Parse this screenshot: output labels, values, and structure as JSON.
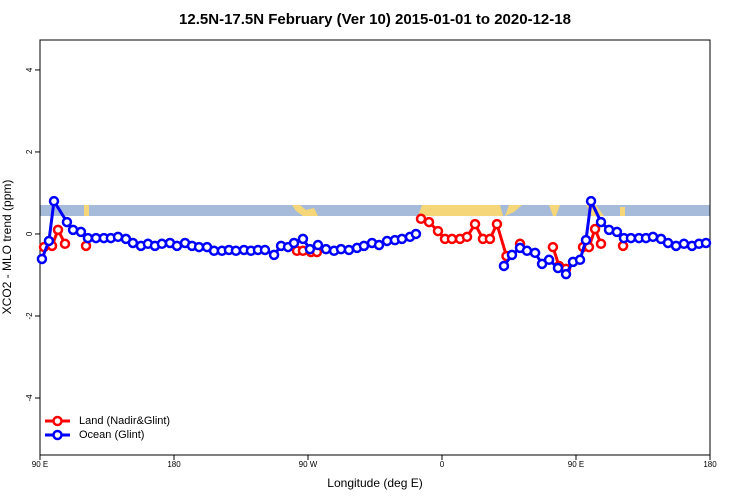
{
  "chart_data": {
    "type": "line",
    "title": "12.5N-17.5N February (Ver 10)   2015-01-01 to 2020-12-18",
    "x_label": "Longitude (deg E)",
    "y_label": "XCO2 - MLO trend (ppm)",
    "xlim": [
      90,
      540
    ],
    "ylim": [
      -5.39,
      4.73
    ],
    "xticks": [
      {
        "value": 90,
        "label": "90 E"
      },
      {
        "value": 180,
        "label": "180"
      },
      {
        "value": 270,
        "label": "90 W"
      },
      {
        "value": 360,
        "label": "0"
      },
      {
        "value": 450,
        "label": "90 E"
      },
      {
        "value": 540,
        "label": "180"
      }
    ],
    "yticks": [
      -4,
      -2,
      0,
      2,
      4
    ],
    "legend": "bottomleft",
    "series": [
      {
        "name": "Land (Nadir&Glint)",
        "color": "#ff0000",
        "x": [
          92.7,
          98.1,
          102.1,
          106.8,
          null,
          120.9,
          null,
          262.6,
          266.6,
          272.0,
          276.0,
          null,
          345.9,
          351.3,
          357.3,
          362.0,
          366.7,
          372.1,
          376.8,
          382.2,
          387.5,
          392.2,
          396.9,
          403.3,
          null,
          412.4,
          null,
          434.5,
          438.6,
          443.3,
          null,
          454.7,
          458.7,
          462.8,
          466.8,
          null,
          481.6
        ],
        "values": [
          -0.32,
          -0.29,
          0.1,
          -0.24,
          null,
          -0.29,
          null,
          -0.41,
          -0.41,
          -0.44,
          -0.44,
          null,
          0.37,
          0.29,
          0.07,
          -0.12,
          -0.12,
          -0.12,
          -0.07,
          0.24,
          -0.12,
          -0.12,
          0.24,
          -0.54,
          null,
          -0.24,
          null,
          -0.32,
          -0.78,
          -0.85,
          null,
          -0.32,
          -0.32,
          0.12,
          -0.24,
          null,
          -0.29
        ]
      },
      {
        "name": "Ocean (Glint)",
        "color": "#0000ff",
        "x": [
          91.3,
          96.0,
          99.4,
          108.1,
          112.2,
          117.5,
          122.2,
          127.6,
          132.9,
          137.6,
          142.4,
          147.7,
          152.4,
          157.8,
          162.5,
          167.2,
          171.9,
          177.3,
          182.0,
          187.4,
          192.1,
          196.8,
          202.2,
          206.9,
          212.2,
          216.9,
          221.6,
          227.0,
          231.7,
          236.4,
          241.1,
          247.2,
          251.9,
          256.6,
          260.6,
          266.6,
          271.3,
          276.7,
          282.1,
          287.5,
          292.2,
          297.5,
          302.9,
          307.6,
          313.0,
          317.7,
          323.1,
          328.4,
          333.1,
          338.5,
          342.5,
          null,
          401.6,
          407.0,
          412.4,
          417.1,
          422.5,
          427.2,
          431.9,
          437.9,
          443.3,
          448.0,
          452.7,
          456.7,
          460.1,
          466.8,
          472.2,
          477.5,
          482.2,
          486.9,
          492.3,
          497.0,
          501.7,
          507.1,
          511.8,
          517.2,
          522.5,
          527.9,
          532.6,
          537.3
        ],
        "values": [
          -0.61,
          -0.17,
          0.8,
          0.29,
          0.1,
          0.05,
          -0.1,
          -0.1,
          -0.1,
          -0.1,
          -0.07,
          -0.12,
          -0.22,
          -0.29,
          -0.24,
          -0.29,
          -0.24,
          -0.22,
          -0.29,
          -0.22,
          -0.29,
          -0.32,
          -0.32,
          -0.41,
          -0.41,
          -0.39,
          -0.41,
          -0.39,
          -0.41,
          -0.39,
          -0.39,
          -0.51,
          -0.29,
          -0.32,
          -0.22,
          -0.12,
          -0.37,
          -0.27,
          -0.37,
          -0.41,
          -0.37,
          -0.39,
          -0.34,
          -0.29,
          -0.22,
          -0.27,
          -0.17,
          -0.15,
          -0.12,
          -0.07,
          0.0,
          null,
          -0.78,
          -0.51,
          -0.34,
          -0.41,
          -0.46,
          -0.73,
          -0.63,
          -0.83,
          -0.98,
          -0.68,
          -0.63,
          -0.15,
          0.8,
          0.29,
          0.1,
          0.05,
          -0.1,
          -0.1,
          -0.1,
          -0.1,
          -0.07,
          -0.12,
          -0.22,
          -0.29,
          -0.24,
          -0.29,
          -0.24,
          -0.22
        ]
      }
    ]
  }
}
